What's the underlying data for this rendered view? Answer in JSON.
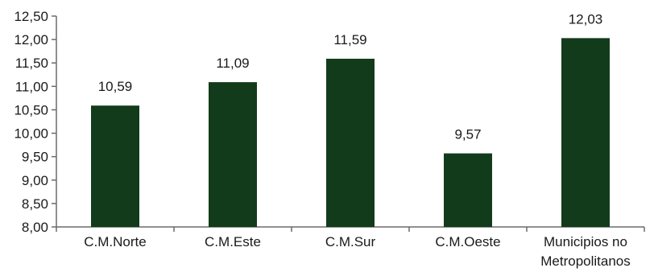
{
  "chart_data": {
    "type": "bar",
    "categories": [
      [
        "C.M.Norte"
      ],
      [
        "C.M.Este"
      ],
      [
        "C.M.Sur"
      ],
      [
        "C.M.Oeste"
      ],
      [
        "Municipios no",
        "Metropolitanos"
      ]
    ],
    "values": [
      10.59,
      11.09,
      11.59,
      9.57,
      12.03
    ],
    "data_labels": [
      "10,59",
      "11,09",
      "11,59",
      "9,57",
      "12,03"
    ],
    "yticks": [
      "8,00",
      "8,50",
      "9,00",
      "9,50",
      "10,00",
      "10,50",
      "11,00",
      "11,50",
      "12,00",
      "12,50"
    ],
    "ylim": [
      8,
      12.5
    ],
    "title": "",
    "xlabel": "",
    "ylabel": "",
    "grid": false,
    "legend": "none",
    "bar_color": "#123b1b",
    "axis_color": "#6b6b6b"
  }
}
